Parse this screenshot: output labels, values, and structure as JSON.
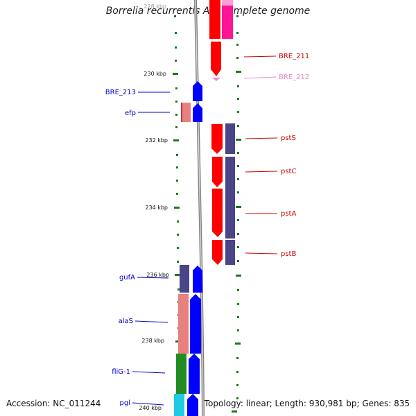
{
  "title": "Borrelia recurrentis A1, complete genome",
  "footer": {
    "accession": "Accession: NC_011244",
    "summary": "Topology: linear; Length: 930,981 bp; Genes: 835"
  },
  "scale": {
    "labels": [
      "228 kbp",
      "230 kbp",
      "232 kbp",
      "234 kbp",
      "236 kbp",
      "238 kbp",
      "240 kbp"
    ]
  },
  "genes": {
    "left": [
      {
        "label": "BRE_213",
        "color": "#0000cc"
      },
      {
        "label": "efp",
        "color": "#0000cc"
      },
      {
        "label": "gufA",
        "color": "#0000cc"
      },
      {
        "label": "alaS",
        "color": "#0000cc"
      },
      {
        "label": "fliG-1",
        "color": "#0000cc"
      },
      {
        "label": "pgl",
        "color": "#0000cc"
      }
    ],
    "right": [
      {
        "label": "BRE_211",
        "color": "#cc0000"
      },
      {
        "label": "BRE_212",
        "color": "#ee88cc"
      },
      {
        "label": "pstS",
        "color": "#cc0000"
      },
      {
        "label": "pstC",
        "color": "#cc0000"
      },
      {
        "label": "pstA",
        "color": "#cc0000"
      },
      {
        "label": "pstB",
        "color": "#cc0000"
      }
    ]
  },
  "colors": {
    "forward_strand_red": "#ff0000",
    "forward_strand_pink": "#ff1493",
    "reverse_strand_blue": "#0000ff",
    "rna_salmon": "#e88080",
    "navy_feature": "#4a4488",
    "green_feature": "#228b22",
    "cyan_feature": "#1ecbe1",
    "axis_gray": "#808080",
    "tick_green": "#1a7a1a"
  }
}
